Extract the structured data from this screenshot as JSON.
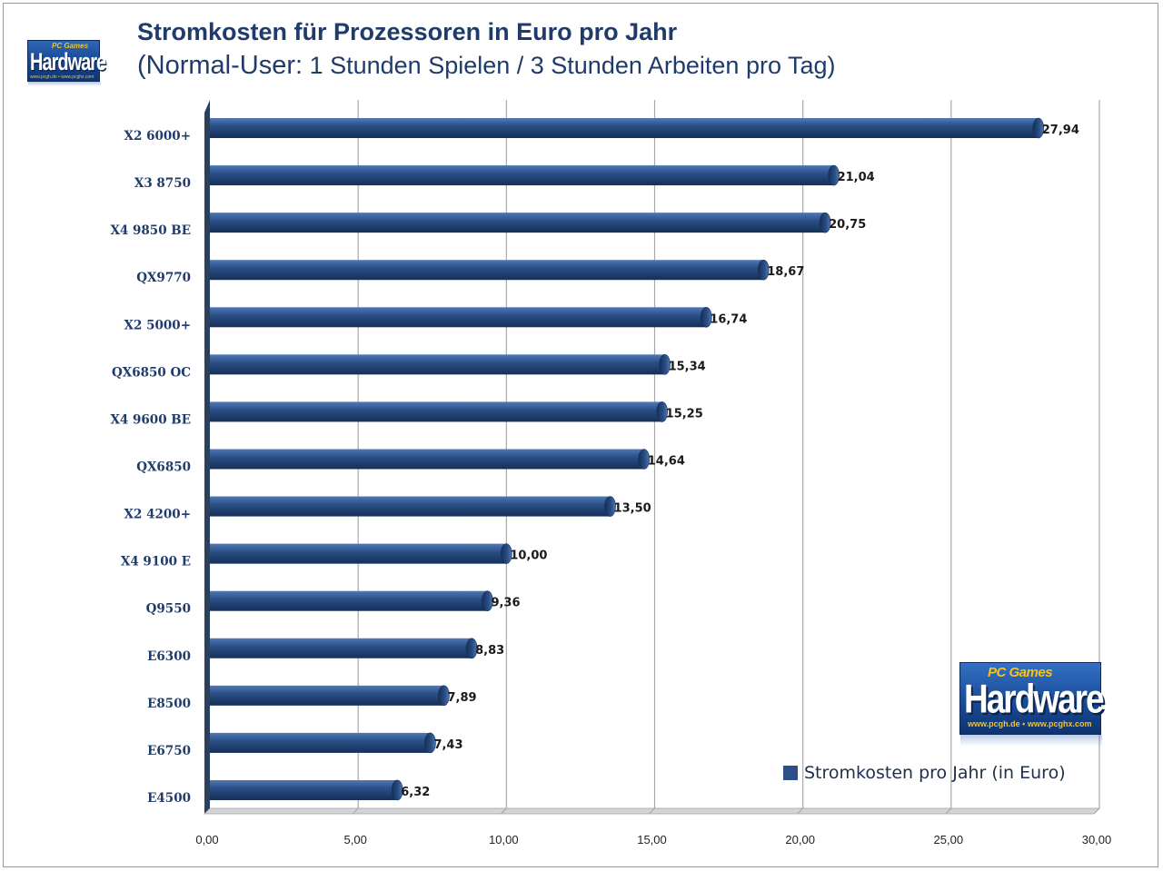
{
  "header": {
    "title": "Stromkosten für Prozessoren in Euro pro Jahr",
    "subtitle_open": "(",
    "subtitle_user": "Normal-User:",
    "subtitle_rest": " 1 Stunden Spielen / 3 Stunden Arbeiten pro Tag)"
  },
  "logos": {
    "small": {
      "brand_top": "PC Games",
      "brand_main": "Hardware",
      "url": "www.pcgh.de • www.pcghx.com"
    },
    "big": {
      "brand_top": "PC Games",
      "brand_main": "Hardware",
      "url": "www.pcgh.de • www.pcghx.com"
    }
  },
  "colors": {
    "bar": "#2b4f86",
    "bar_light": "#4f79b8",
    "bar_dark": "#152f58",
    "title": "#1f3b6b",
    "grid": "#a8a8a8"
  },
  "chart_data": {
    "type": "bar",
    "orientation": "horizontal",
    "title": "Stromkosten für Prozessoren in Euro pro Jahr",
    "subtitle": "(Normal-User: 1 Stunden Spielen / 3 Stunden Arbeiten pro Tag)",
    "categories": [
      "X2 6000+",
      "X3 8750",
      "X4 9850 BE",
      "QX9770",
      "X2 5000+",
      "QX6850 OC",
      "X4 9600 BE",
      "QX6850",
      "X2 4200+",
      "X4 9100 E",
      "Q9550",
      "E6300",
      "E8500",
      "E6750",
      "E4500"
    ],
    "series": [
      {
        "name": "Stromkosten pro Jahr (in Euro)",
        "values": [
          27.94,
          21.04,
          20.75,
          18.67,
          16.74,
          15.34,
          15.25,
          14.64,
          13.5,
          10.0,
          9.36,
          8.83,
          7.89,
          7.43,
          6.32
        ],
        "value_labels": [
          "27,94",
          "21,04",
          "20,75",
          "18,67",
          "16,74",
          "15,34",
          "15,25",
          "14,64",
          "13,50",
          "10,00",
          "9,36",
          "8,83",
          "7,89",
          "7,43",
          "6,32"
        ]
      }
    ],
    "xlim": [
      0,
      30
    ],
    "xticks": [
      0,
      5,
      10,
      15,
      20,
      25,
      30
    ],
    "xtick_labels": [
      "0,00",
      "5,00",
      "10,00",
      "15,00",
      "20,00",
      "25,00",
      "30,00"
    ],
    "grid": "vertical",
    "legend_position": "bottom-right",
    "legend_label": "Stromkosten pro Jahr (in Euro)"
  }
}
